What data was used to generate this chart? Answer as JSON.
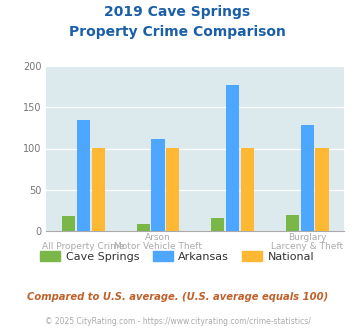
{
  "title_line1": "2019 Cave Springs",
  "title_line2": "Property Crime Comparison",
  "groups": [
    {
      "label": "All Property Crime",
      "cave_springs": 18,
      "arkansas": 135,
      "national": 101
    },
    {
      "label": "Arson / Motor Vehicle Theft",
      "cave_springs": 9,
      "arkansas": 112,
      "national": 101
    },
    {
      "label": "Burglary",
      "cave_springs": 16,
      "arkansas": 177,
      "national": 101
    },
    {
      "label": "Larceny & Theft",
      "cave_springs": 20,
      "arkansas": 129,
      "national": 101
    }
  ],
  "top_labels": [
    "",
    "Arson",
    "",
    "Burglary"
  ],
  "bottom_labels": [
    "All Property Crime",
    "Motor Vehicle Theft",
    "",
    "Larceny & Theft"
  ],
  "color_cave_springs": "#7ab648",
  "color_arkansas": "#4da6ff",
  "color_national": "#ffb833",
  "ylim": [
    0,
    200
  ],
  "yticks": [
    0,
    50,
    100,
    150,
    200
  ],
  "background_color": "#dce9ed",
  "legend_labels": [
    "Cave Springs",
    "Arkansas",
    "National"
  ],
  "subtitle": "Compared to U.S. average. (U.S. average equals 100)",
  "footer": "© 2025 CityRating.com - https://www.cityrating.com/crime-statistics/",
  "title_color": "#1a5fa8",
  "subtitle_color": "#c0612b",
  "footer_color": "#aaaaaa",
  "footer_link_color": "#4da6ff",
  "xlabel_color": "#aaaaaa"
}
